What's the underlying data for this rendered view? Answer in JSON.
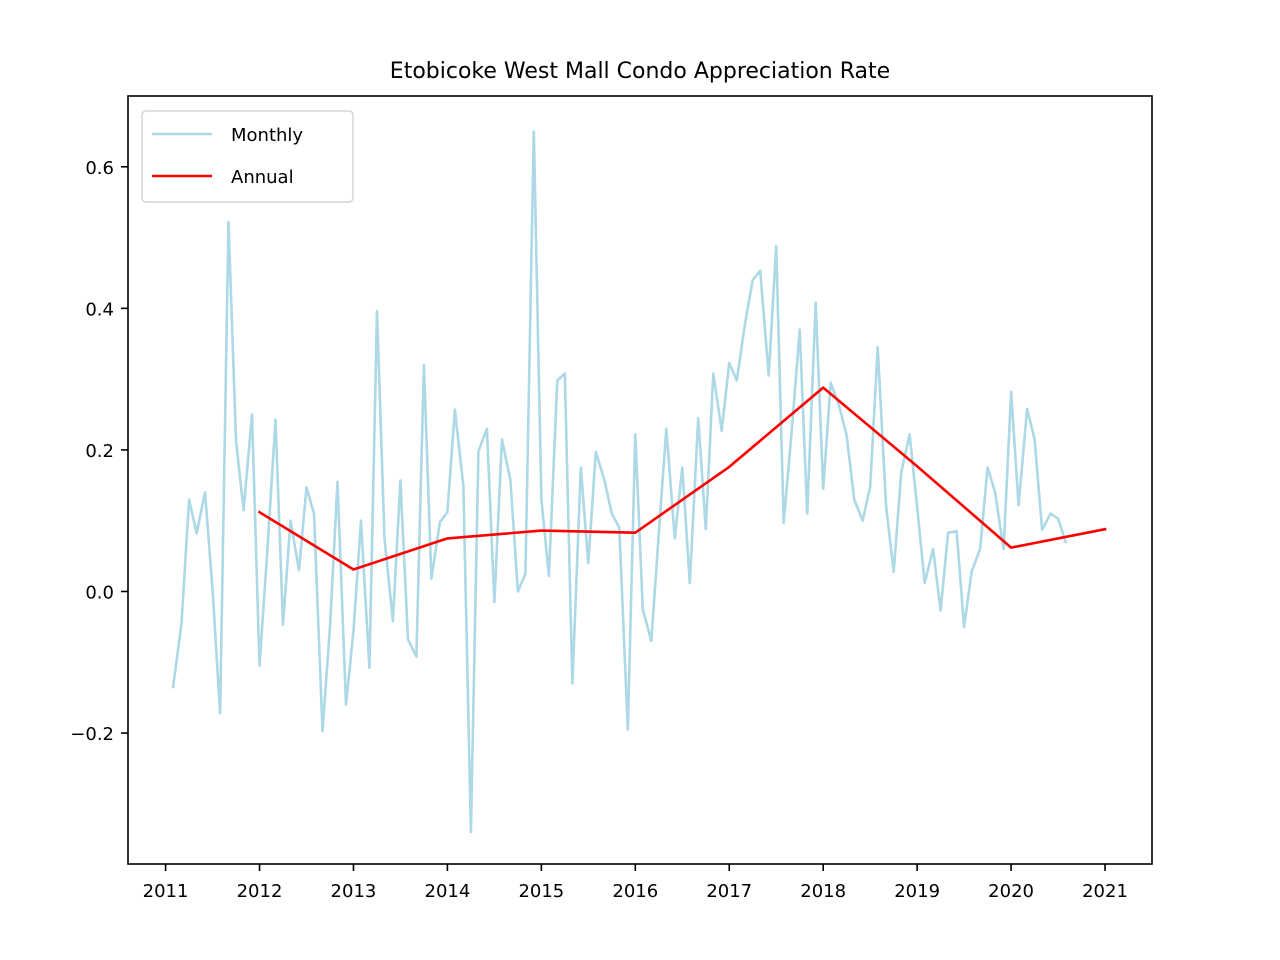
{
  "chart_data": {
    "type": "line",
    "title": "Etobicoke West Mall Condo Appreciation Rate",
    "xlabel": "",
    "ylabel": "",
    "xlim": [
      2010.6,
      2021.5
    ],
    "ylim": [
      -0.385,
      0.7
    ],
    "x_ticks": [
      2011,
      2012,
      2013,
      2014,
      2015,
      2016,
      2017,
      2018,
      2019,
      2020,
      2021
    ],
    "x_tick_labels": [
      "2011",
      "2012",
      "2013",
      "2014",
      "2015",
      "2016",
      "2017",
      "2018",
      "2019",
      "2020",
      "2021"
    ],
    "y_ticks": [
      -0.2,
      0.0,
      0.2,
      0.4,
      0.6
    ],
    "y_tick_labels": [
      "−0.2",
      "0.0",
      "0.2",
      "0.4",
      "0.6"
    ],
    "grid": false,
    "legend_position": "top-left",
    "series": [
      {
        "name": "Monthly",
        "color": "#add8e6",
        "points": [
          [
            2011.08,
            -0.135
          ],
          [
            2011.17,
            -0.045
          ],
          [
            2011.25,
            0.13
          ],
          [
            2011.33,
            0.082
          ],
          [
            2011.42,
            0.14
          ],
          [
            2011.5,
            0.002
          ],
          [
            2011.58,
            -0.172
          ],
          [
            2011.67,
            0.522
          ],
          [
            2011.75,
            0.213
          ],
          [
            2011.83,
            0.115
          ],
          [
            2011.92,
            0.25
          ],
          [
            2012.0,
            -0.105
          ],
          [
            2012.08,
            0.05
          ],
          [
            2012.17,
            0.243
          ],
          [
            2012.25,
            -0.047
          ],
          [
            2012.33,
            0.1
          ],
          [
            2012.42,
            0.03
          ],
          [
            2012.5,
            0.147
          ],
          [
            2012.58,
            0.11
          ],
          [
            2012.67,
            -0.197
          ],
          [
            2012.75,
            -0.05
          ],
          [
            2012.83,
            0.155
          ],
          [
            2012.92,
            -0.16
          ],
          [
            2013.0,
            -0.055
          ],
          [
            2013.08,
            0.1
          ],
          [
            2013.17,
            -0.108
          ],
          [
            2013.25,
            0.396
          ],
          [
            2013.33,
            0.075
          ],
          [
            2013.42,
            -0.042
          ],
          [
            2013.5,
            0.157
          ],
          [
            2013.58,
            -0.068
          ],
          [
            2013.67,
            -0.092
          ],
          [
            2013.75,
            0.32
          ],
          [
            2013.83,
            0.018
          ],
          [
            2013.92,
            0.098
          ],
          [
            2014.0,
            0.112
          ],
          [
            2014.08,
            0.257
          ],
          [
            2014.17,
            0.148
          ],
          [
            2014.25,
            -0.34
          ],
          [
            2014.33,
            0.198
          ],
          [
            2014.42,
            0.23
          ],
          [
            2014.5,
            -0.015
          ],
          [
            2014.58,
            0.215
          ],
          [
            2014.67,
            0.157
          ],
          [
            2014.75,
            0.0
          ],
          [
            2014.83,
            0.025
          ],
          [
            2014.92,
            0.65
          ],
          [
            2015.0,
            0.13
          ],
          [
            2015.08,
            0.022
          ],
          [
            2015.17,
            0.298
          ],
          [
            2015.25,
            0.308
          ],
          [
            2015.33,
            -0.13
          ],
          [
            2015.42,
            0.175
          ],
          [
            2015.5,
            0.04
          ],
          [
            2015.58,
            0.197
          ],
          [
            2015.67,
            0.158
          ],
          [
            2015.75,
            0.11
          ],
          [
            2015.83,
            0.09
          ],
          [
            2015.92,
            -0.195
          ],
          [
            2016.0,
            0.222
          ],
          [
            2016.08,
            -0.025
          ],
          [
            2016.17,
            -0.07
          ],
          [
            2016.25,
            0.082
          ],
          [
            2016.33,
            0.23
          ],
          [
            2016.42,
            0.075
          ],
          [
            2016.5,
            0.175
          ],
          [
            2016.58,
            0.012
          ],
          [
            2016.67,
            0.245
          ],
          [
            2016.75,
            0.088
          ],
          [
            2016.83,
            0.308
          ],
          [
            2016.92,
            0.227
          ],
          [
            2017.0,
            0.323
          ],
          [
            2017.08,
            0.298
          ],
          [
            2017.17,
            0.38
          ],
          [
            2017.25,
            0.44
          ],
          [
            2017.33,
            0.453
          ],
          [
            2017.42,
            0.305
          ],
          [
            2017.5,
            0.488
          ],
          [
            2017.58,
            0.097
          ],
          [
            2017.67,
            0.235
          ],
          [
            2017.75,
            0.37
          ],
          [
            2017.83,
            0.11
          ],
          [
            2017.92,
            0.408
          ],
          [
            2018.0,
            0.145
          ],
          [
            2018.08,
            0.295
          ],
          [
            2018.17,
            0.262
          ],
          [
            2018.25,
            0.22
          ],
          [
            2018.33,
            0.13
          ],
          [
            2018.42,
            0.1
          ],
          [
            2018.5,
            0.148
          ],
          [
            2018.58,
            0.345
          ],
          [
            2018.67,
            0.12
          ],
          [
            2018.75,
            0.028
          ],
          [
            2018.83,
            0.168
          ],
          [
            2018.92,
            0.222
          ],
          [
            2019.0,
            0.12
          ],
          [
            2019.08,
            0.012
          ],
          [
            2019.17,
            0.06
          ],
          [
            2019.25,
            -0.027
          ],
          [
            2019.33,
            0.083
          ],
          [
            2019.42,
            0.085
          ],
          [
            2019.5,
            -0.05
          ],
          [
            2019.58,
            0.028
          ],
          [
            2019.67,
            0.06
          ],
          [
            2019.75,
            0.175
          ],
          [
            2019.83,
            0.14
          ],
          [
            2019.92,
            0.06
          ],
          [
            2020.0,
            0.282
          ],
          [
            2020.08,
            0.122
          ],
          [
            2020.17,
            0.258
          ],
          [
            2020.25,
            0.215
          ],
          [
            2020.33,
            0.087
          ],
          [
            2020.42,
            0.11
          ],
          [
            2020.5,
            0.103
          ],
          [
            2020.58,
            0.07
          ]
        ]
      },
      {
        "name": "Annual",
        "color": "#ff0000",
        "points": [
          [
            2012.0,
            0.112
          ],
          [
            2013.0,
            0.031
          ],
          [
            2014.0,
            0.075
          ],
          [
            2015.0,
            0.086
          ],
          [
            2016.0,
            0.083
          ],
          [
            2017.0,
            0.176
          ],
          [
            2018.0,
            0.288
          ],
          [
            2019.0,
            0.177
          ],
          [
            2020.0,
            0.062
          ],
          [
            2021.0,
            0.088
          ]
        ]
      }
    ]
  }
}
